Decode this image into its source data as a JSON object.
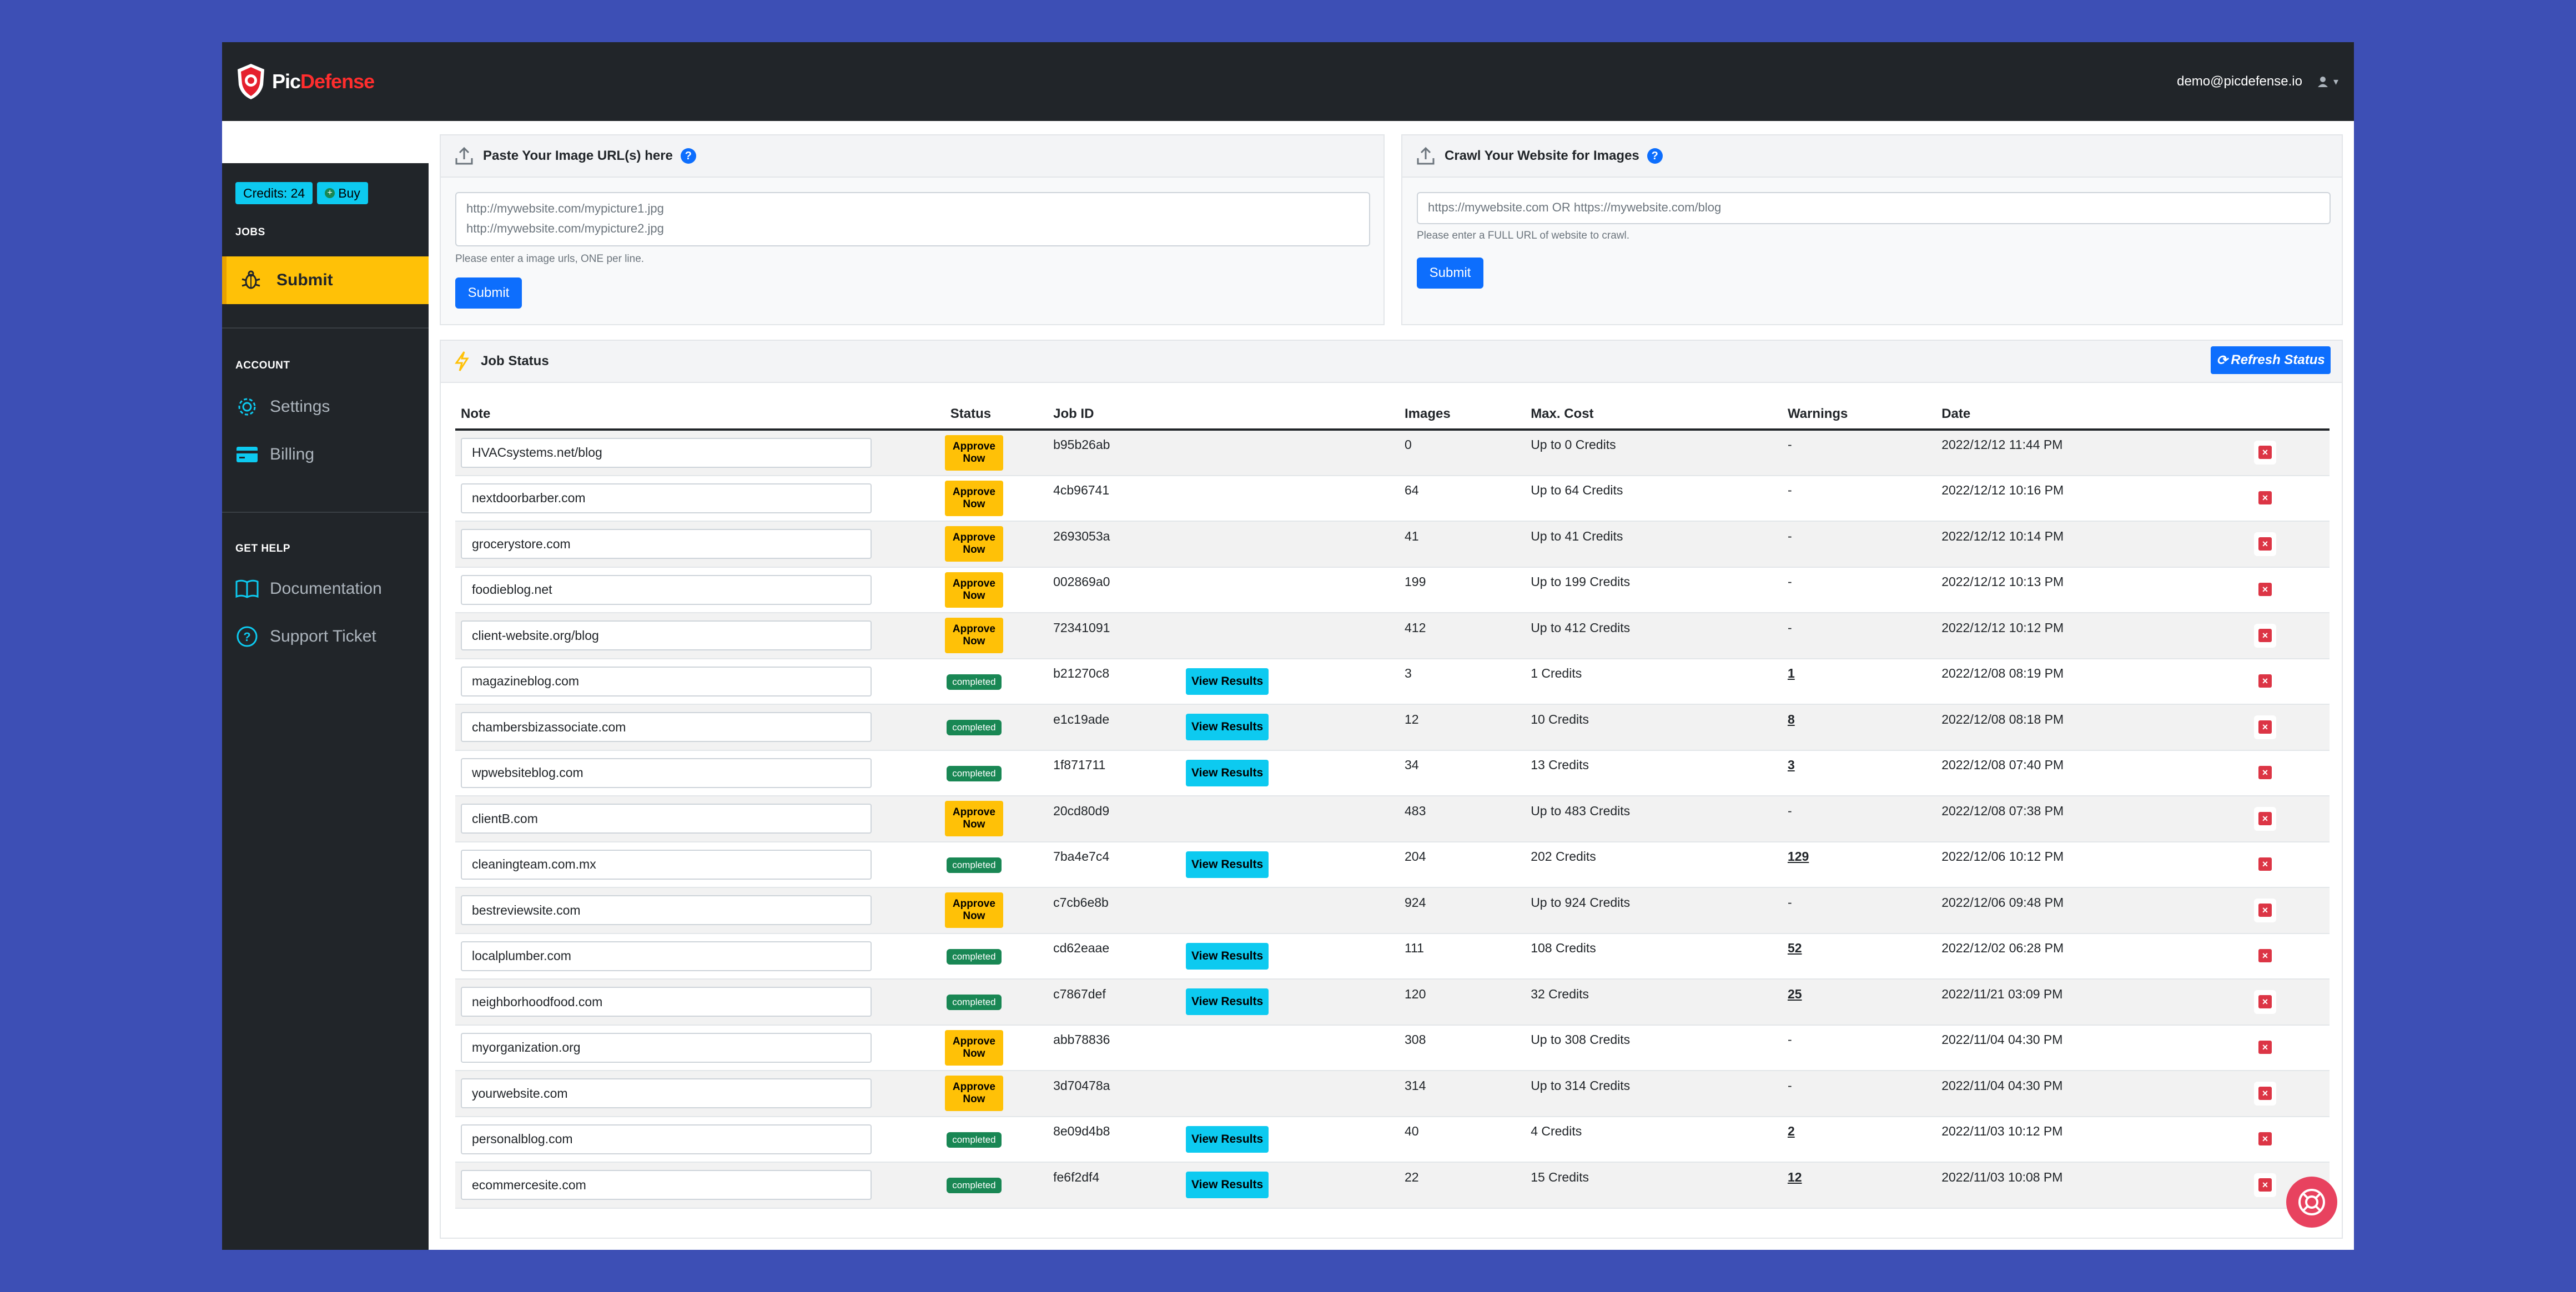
{
  "header": {
    "logo_pic": "Pic",
    "logo_defense": "Defense",
    "user_email": "demo@picdefense.io"
  },
  "sidebar": {
    "credits": "Credits: 24",
    "buy": "Buy",
    "jobs_title": "JOBS",
    "submit": "Submit",
    "account_title": "ACCOUNT",
    "settings": "Settings",
    "billing": "Billing",
    "help_title": "GET HELP",
    "documentation": "Documentation",
    "support": "Support Ticket"
  },
  "paste_panel": {
    "title": "Paste Your Image URL(s) here",
    "placeholder_line1": "http://mywebsite.com/mypicture1.jpg",
    "placeholder_line2": "http://mywebsite.com/mypicture2.jpg",
    "hint": "Please enter a image urls, ONE per line.",
    "submit": "Submit"
  },
  "crawl_panel": {
    "title": "Crawl Your Website for Images",
    "placeholder": "https://mywebsite.com OR https://mywebsite.com/blog",
    "hint": "Please enter a FULL URL of website to crawl.",
    "submit": "Submit"
  },
  "job_status": {
    "title": "Job Status",
    "refresh": "Refresh Status",
    "columns": [
      "Note",
      "Status",
      "Job ID",
      "Images",
      "Max. Cost",
      "Warnings",
      "Date"
    ],
    "approve_label": "Approve Now",
    "completed_label": "completed",
    "view_label": "View Results",
    "rows": [
      {
        "note": "HVACsystems.net/blog",
        "status": "approve",
        "job_id": "b95b26ab",
        "images": "0",
        "cost": "Up to 0 Credits",
        "warnings": "-",
        "date": "2022/12/12 11:44 PM"
      },
      {
        "note": "nextdoorbarber.com",
        "status": "approve",
        "job_id": "4cb96741",
        "images": "64",
        "cost": "Up to 64 Credits",
        "warnings": "-",
        "date": "2022/12/12 10:16 PM"
      },
      {
        "note": "grocerystore.com",
        "status": "approve",
        "job_id": "2693053a",
        "images": "41",
        "cost": "Up to 41 Credits",
        "warnings": "-",
        "date": "2022/12/12 10:14 PM"
      },
      {
        "note": "foodieblog.net",
        "status": "approve",
        "job_id": "002869a0",
        "images": "199",
        "cost": "Up to 199 Credits",
        "warnings": "-",
        "date": "2022/12/12 10:13 PM"
      },
      {
        "note": "client-website.org/blog",
        "status": "approve",
        "job_id": "72341091",
        "images": "412",
        "cost": "Up to 412 Credits",
        "warnings": "-",
        "date": "2022/12/12 10:12 PM"
      },
      {
        "note": "magazineblog.com",
        "status": "completed",
        "job_id": "b21270c8",
        "images": "3",
        "cost": "1 Credits",
        "warnings": "1",
        "date": "2022/12/08 08:19 PM"
      },
      {
        "note": "chambersbizassociate.com",
        "status": "completed",
        "job_id": "e1c19ade",
        "images": "12",
        "cost": "10 Credits",
        "warnings": "8",
        "date": "2022/12/08 08:18 PM"
      },
      {
        "note": "wpwebsiteblog.com",
        "status": "completed",
        "job_id": "1f871711",
        "images": "34",
        "cost": "13 Credits",
        "warnings": "3",
        "date": "2022/12/08 07:40 PM"
      },
      {
        "note": "clientB.com",
        "status": "approve",
        "job_id": "20cd80d9",
        "images": "483",
        "cost": "Up to 483 Credits",
        "warnings": "-",
        "date": "2022/12/08 07:38 PM"
      },
      {
        "note": "cleaningteam.com.mx",
        "status": "completed",
        "job_id": "7ba4e7c4",
        "images": "204",
        "cost": "202 Credits",
        "warnings": "129",
        "date": "2022/12/06 10:12 PM"
      },
      {
        "note": "bestreviewsite.com",
        "status": "approve",
        "job_id": "c7cb6e8b",
        "images": "924",
        "cost": "Up to 924 Credits",
        "warnings": "-",
        "date": "2022/12/06 09:48 PM"
      },
      {
        "note": "localplumber.com",
        "status": "completed",
        "job_id": "cd62eaae",
        "images": "111",
        "cost": "108 Credits",
        "warnings": "52",
        "date": "2022/12/02 06:28 PM"
      },
      {
        "note": "neighborhoodfood.com",
        "status": "completed",
        "job_id": "c7867def",
        "images": "120",
        "cost": "32 Credits",
        "warnings": "25",
        "date": "2022/11/21 03:09 PM"
      },
      {
        "note": "myorganization.org",
        "status": "approve",
        "job_id": "abb78836",
        "images": "308",
        "cost": "Up to 308 Credits",
        "warnings": "-",
        "date": "2022/11/04 04:30 PM"
      },
      {
        "note": "yourwebsite.com",
        "status": "approve",
        "job_id": "3d70478a",
        "images": "314",
        "cost": "Up to 314 Credits",
        "warnings": "-",
        "date": "2022/11/04 04:30 PM"
      },
      {
        "note": "personalblog.com",
        "status": "completed",
        "job_id": "8e09d4b8",
        "images": "40",
        "cost": "4 Credits",
        "warnings": "2",
        "date": "2022/11/03 10:12 PM"
      },
      {
        "note": "ecommercesite.com",
        "status": "completed",
        "job_id": "fe6f2df4",
        "images": "22",
        "cost": "15 Credits",
        "warnings": "12",
        "date": "2022/11/03 10:08 PM"
      }
    ]
  },
  "colors": {
    "page_bg": "#3d4fb5",
    "sidebar_bg": "#212529",
    "accent_yellow": "#ffc107",
    "primary_blue": "#0d6efd",
    "info_cyan": "#0dcaf0",
    "success_green": "#198754",
    "danger_red": "#dc3545",
    "chat_pink": "#e8425f"
  }
}
